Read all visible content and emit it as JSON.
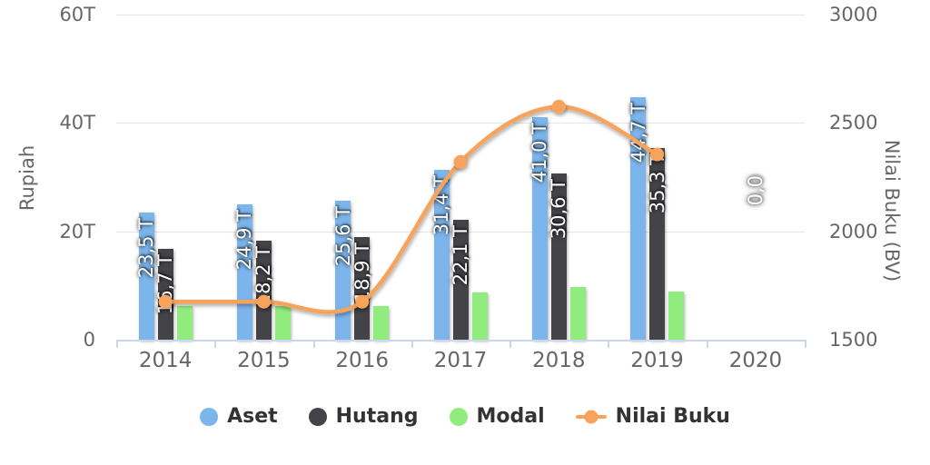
{
  "chart_data": {
    "type": "combo-bar-line",
    "title": "",
    "categories": [
      "2014",
      "2015",
      "2016",
      "2017",
      "2018",
      "2019",
      "2020"
    ],
    "left_axis": {
      "title": "Rupiah",
      "min": 0,
      "max": 60,
      "tick_values": [
        0,
        20,
        40,
        60
      ],
      "tick_labels": [
        "0",
        "20T",
        "40T",
        "60T"
      ]
    },
    "right_axis": {
      "title": "Nilai Buku (BV)",
      "min": 1500,
      "max": 3000,
      "tick_values": [
        1500,
        2000,
        2500,
        3000
      ],
      "tick_labels": [
        "1500",
        "2000",
        "2500",
        "3000"
      ]
    },
    "series": [
      {
        "name": "Aset",
        "type": "bar",
        "axis": "left",
        "color": "#7CB5EC",
        "values": [
          23.5,
          24.9,
          25.6,
          31.4,
          41.0,
          44.7,
          0
        ],
        "labels": [
          "23,5 T",
          "24,9 T",
          "25,6 T",
          "31,4 T",
          "41,0 T",
          "44,7 T",
          ""
        ]
      },
      {
        "name": "Hutang",
        "type": "bar",
        "axis": "left",
        "color": "#434348",
        "values": [
          16.7,
          18.2,
          18.9,
          22.1,
          30.6,
          35.3,
          0
        ],
        "labels": [
          "16,7 T",
          "18,2 T",
          "18,9 T",
          "22,1 T",
          "30,6 T",
          "35,3 T",
          ""
        ]
      },
      {
        "name": "Modal",
        "type": "bar",
        "axis": "left",
        "color": "#90ED7D",
        "values": [
          6.2,
          6.2,
          6.2,
          8.7,
          9.8,
          8.9,
          0
        ],
        "labels": [
          "",
          "",
          "",
          "",
          "",
          "",
          ""
        ]
      },
      {
        "name": "Nilai Buku",
        "type": "line",
        "axis": "right",
        "color": "#F7A35C",
        "values": [
          1675,
          1675,
          1675,
          2320,
          2575,
          2355,
          null
        ]
      }
    ],
    "annotations": [
      {
        "text": "0,0",
        "category": "2020"
      }
    ],
    "legend_entries": [
      "Aset",
      "Hutang",
      "Modal",
      "Nilai Buku"
    ],
    "grid": true
  },
  "colors": {
    "background": "#FFFFFF",
    "gridline": "#E6E6E6",
    "axis_line": "#CCD6EB",
    "axis_text": "#666666",
    "legend_text": "#333333",
    "bar_label_text": "#FFFFFF"
  }
}
